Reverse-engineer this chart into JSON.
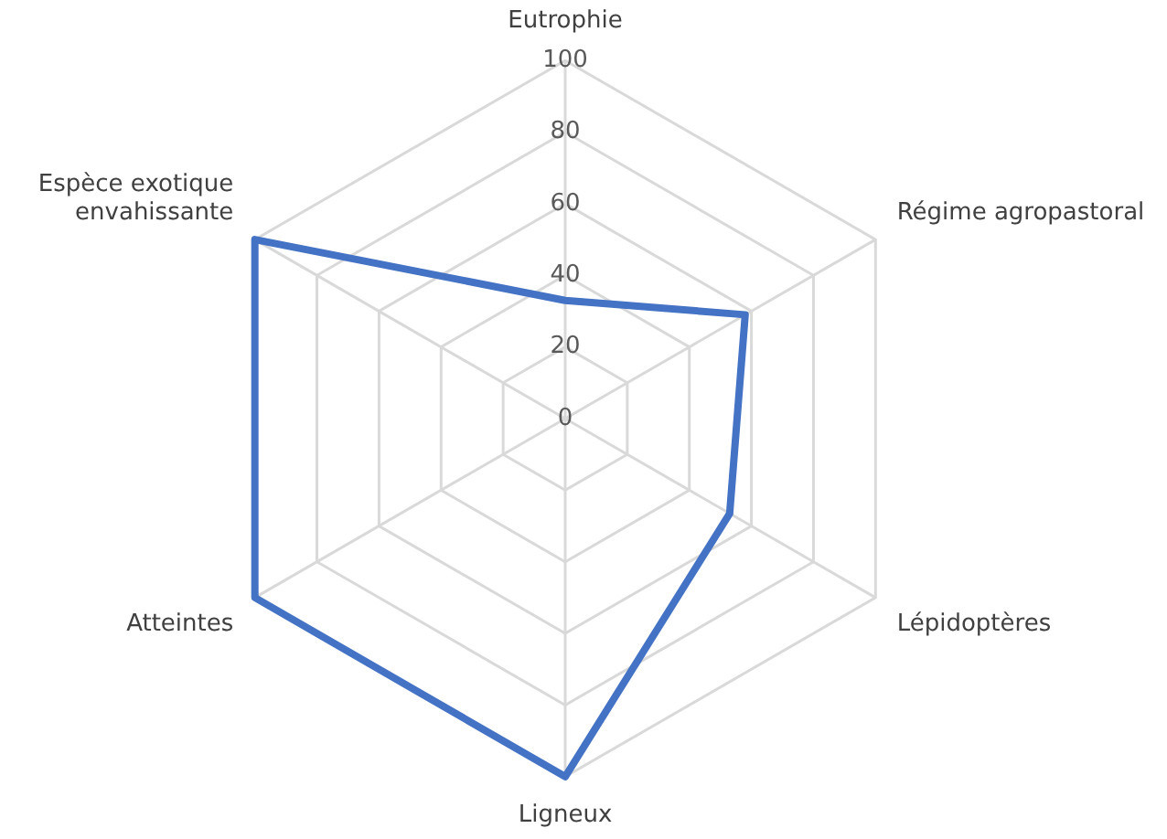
{
  "chart_data": {
    "type": "radar",
    "categories": [
      "Eutrophie",
      "Régime agropastoral",
      "Lépidoptères",
      "Ligneux",
      "Atteintes",
      "Espèce exotique envahissante"
    ],
    "series": [
      {
        "color": "#4472c4",
        "values": [
          33,
          58,
          53,
          100,
          100,
          100
        ]
      }
    ],
    "ylim": [
      0,
      100
    ],
    "yticks": [
      0,
      20,
      40,
      60,
      80,
      100
    ],
    "grid": true,
    "legend": false,
    "marker": "none",
    "line_style": "solid"
  }
}
